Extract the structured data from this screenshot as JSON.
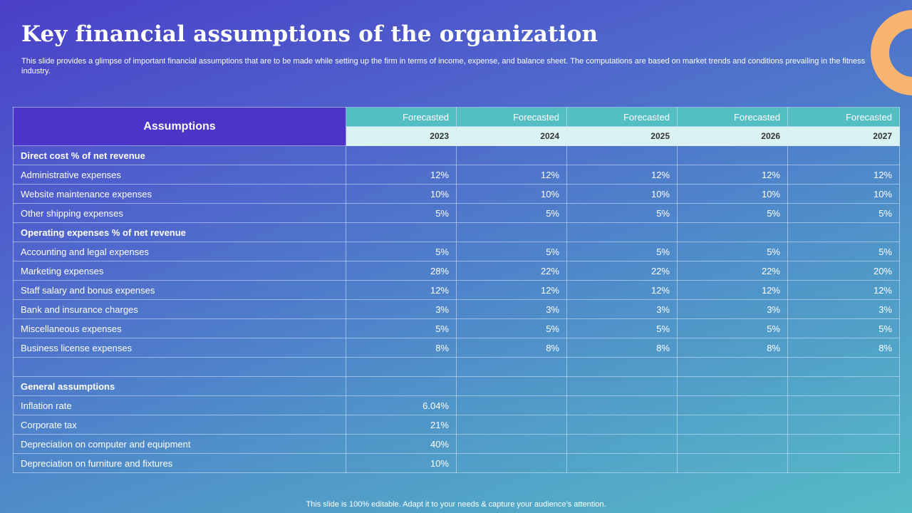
{
  "slide": {
    "title": "Key financial assumptions of the organization",
    "subtitle": "This slide provides a glimpse of important financial assumptions that are to be made while setting up the firm in terms of income, expense, and balance sheet. The computations are based on market trends and conditions prevailing in the fitness industry.",
    "footer": "This slide is 100% editable. Adapt it to your needs & capture your audience’s attention."
  },
  "colors": {
    "header_purple": "#4c34c6",
    "header_teal": "#54bfc3",
    "year_row": "#dbf2f2",
    "accent_ring": "#f8b471"
  },
  "table": {
    "assumptions_header": "Assumptions",
    "forecast_label": "Forecasted",
    "years": [
      "2023",
      "2024",
      "2025",
      "2026",
      "2027"
    ],
    "rows": [
      {
        "label": "Direct cost %  of net revenue",
        "section": true,
        "values": [
          "",
          "",
          "",
          "",
          ""
        ]
      },
      {
        "label": "Administrative  expenses",
        "section": false,
        "values": [
          "12%",
          "12%",
          "12%",
          "12%",
          "12%"
        ]
      },
      {
        "label": "Website maintenance expenses",
        "section": false,
        "values": [
          "10%",
          "10%",
          "10%",
          "10%",
          "10%"
        ]
      },
      {
        "label": "Other shipping expenses",
        "section": false,
        "values": [
          "5%",
          "5%",
          "5%",
          "5%",
          "5%"
        ]
      },
      {
        "label": "Operating expenses %  of net revenue",
        "section": true,
        "values": [
          "",
          "",
          "",
          "",
          ""
        ]
      },
      {
        "label": "Accounting and legal expenses",
        "section": false,
        "values": [
          "5%",
          "5%",
          "5%",
          "5%",
          "5%"
        ]
      },
      {
        "label": "Marketing expenses",
        "section": false,
        "values": [
          "28%",
          "22%",
          "22%",
          "22%",
          "20%"
        ]
      },
      {
        "label": "Staff salary and bonus expenses",
        "section": false,
        "values": [
          "12%",
          "12%",
          "12%",
          "12%",
          "12%"
        ]
      },
      {
        "label": "Bank and insurance  charges",
        "section": false,
        "values": [
          "3%",
          "3%",
          "3%",
          "3%",
          "3%"
        ]
      },
      {
        "label": "Miscellaneous expenses",
        "section": false,
        "values": [
          "5%",
          "5%",
          "5%",
          "5%",
          "5%"
        ]
      },
      {
        "label": "Business license expenses",
        "section": false,
        "values": [
          "8%",
          "8%",
          "8%",
          "8%",
          "8%"
        ]
      },
      {
        "label": "",
        "section": false,
        "values": [
          "",
          "",
          "",
          "",
          ""
        ]
      },
      {
        "label": "General assumptions",
        "section": true,
        "values": [
          "",
          "",
          "",
          "",
          ""
        ]
      },
      {
        "label": "Inflation rate",
        "section": false,
        "values": [
          "6.04%",
          "",
          "",
          "",
          ""
        ]
      },
      {
        "label": "Corporate  tax",
        "section": false,
        "values": [
          "21%",
          "",
          "",
          "",
          ""
        ]
      },
      {
        "label": "Depreciation  on computer  and equipment",
        "section": false,
        "values": [
          "40%",
          "",
          "",
          "",
          ""
        ]
      },
      {
        "label": "Depreciation  on furniture  and fixtures",
        "section": false,
        "values": [
          "10%",
          "",
          "",
          "",
          ""
        ]
      }
    ]
  }
}
